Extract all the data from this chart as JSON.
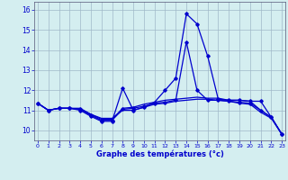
{
  "hours": [
    0,
    1,
    2,
    3,
    4,
    5,
    6,
    7,
    8,
    9,
    10,
    11,
    12,
    13,
    14,
    15,
    16,
    17,
    18,
    19,
    20,
    21,
    22,
    23
  ],
  "line1": [
    11.35,
    11.0,
    11.1,
    11.1,
    11.0,
    10.7,
    10.45,
    10.45,
    12.1,
    11.0,
    11.15,
    11.4,
    12.0,
    12.6,
    15.8,
    15.3,
    13.7,
    11.55,
    11.5,
    11.5,
    11.45,
    11.45,
    10.65,
    9.8
  ],
  "line2": [
    11.35,
    11.0,
    11.1,
    11.1,
    11.1,
    10.8,
    10.55,
    10.55,
    11.1,
    11.15,
    11.3,
    11.4,
    11.5,
    11.55,
    11.6,
    11.65,
    11.6,
    11.6,
    11.5,
    11.5,
    11.45,
    11.0,
    10.65,
    9.8
  ],
  "line3": [
    11.35,
    11.0,
    11.1,
    11.1,
    11.05,
    10.75,
    10.5,
    10.5,
    11.05,
    11.1,
    11.2,
    11.35,
    11.4,
    11.5,
    14.4,
    12.0,
    11.5,
    11.5,
    11.45,
    11.4,
    11.35,
    11.0,
    10.65,
    9.8
  ],
  "line4": [
    11.35,
    11.0,
    11.1,
    11.1,
    11.05,
    10.8,
    10.6,
    10.6,
    11.0,
    11.0,
    11.15,
    11.3,
    11.35,
    11.45,
    11.5,
    11.55,
    11.55,
    11.5,
    11.45,
    11.35,
    11.3,
    10.9,
    10.6,
    9.8
  ],
  "line_color": "#0000cd",
  "bg_color": "#d4eef0",
  "grid_color": "#a0b8c8",
  "ylabel_ticks": [
    10,
    11,
    12,
    13,
    14,
    15,
    16
  ],
  "xlabel_ticks": [
    0,
    1,
    2,
    3,
    4,
    5,
    6,
    7,
    8,
    9,
    10,
    11,
    12,
    13,
    14,
    15,
    16,
    17,
    18,
    19,
    20,
    21,
    22,
    23
  ],
  "xlabel": "Graphe des températures (°c)",
  "ylim": [
    9.5,
    16.4
  ],
  "xlim": [
    -0.3,
    23.3
  ],
  "marker": "D"
}
